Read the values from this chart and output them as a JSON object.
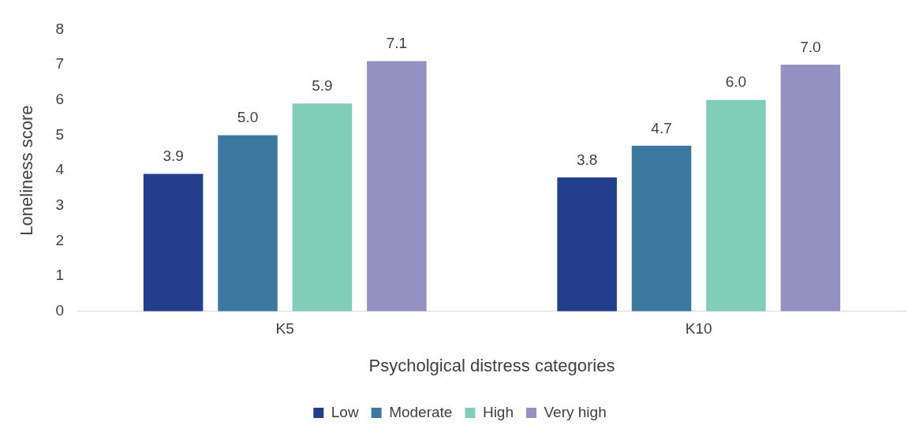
{
  "chart_data": {
    "type": "bar",
    "xlabel": "Psycholgical distress categories",
    "ylabel": "Loneliness score",
    "categories": [
      "K5",
      "K10"
    ],
    "series": [
      {
        "name": "Low",
        "color": "#233e8b",
        "values": [
          3.9,
          3.8
        ],
        "value_labels": [
          "3.9",
          "3.8"
        ]
      },
      {
        "name": "Moderate",
        "color": "#3d78a0",
        "values": [
          5.0,
          4.7
        ],
        "value_labels": [
          "5.0",
          "4.7"
        ]
      },
      {
        "name": "High",
        "color": "#82cdb8",
        "values": [
          5.9,
          6.0
        ],
        "value_labels": [
          "5.9",
          "6.0"
        ]
      },
      {
        "name": "Very high",
        "color": "#9592c2",
        "values": [
          7.1,
          7.0
        ],
        "value_labels": [
          "7.1",
          "7.0"
        ]
      }
    ],
    "ylim": [
      0,
      8
    ],
    "yticks": [
      0,
      1,
      2,
      3,
      4,
      5,
      6,
      7,
      8
    ],
    "grid": false,
    "legend": "bottom"
  }
}
